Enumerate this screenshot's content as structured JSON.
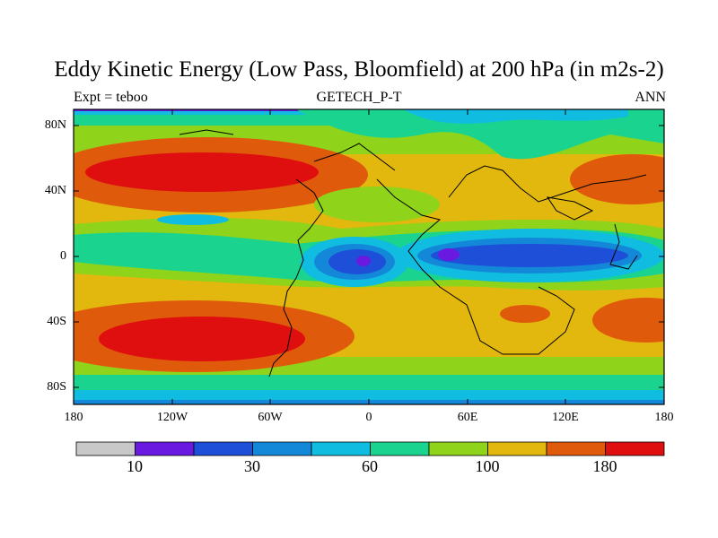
{
  "title": "Eddy Kinetic Energy (Low Pass, Bloomfield) at 200 hPa (in m2s-2)",
  "subtitle_left": "Expt = teboo",
  "subtitle_center": "GETECH_P-T",
  "subtitle_right": "ANN",
  "lat_labels": [
    "80N",
    "40N",
    "0",
    "40S",
    "80S"
  ],
  "lon_labels": [
    "180",
    "120W",
    "60W",
    "0",
    "60E",
    "120E",
    "180"
  ],
  "colorbar": {
    "colors": [
      "#c8c8c8",
      "#6a1ae0",
      "#1e4fd8",
      "#1488d8",
      "#10bde0",
      "#1ad38f",
      "#8fd41a",
      "#e2b80e",
      "#e05a0c",
      "#e00f0f"
    ],
    "labels": [
      "10",
      "30",
      "60",
      "100",
      "180"
    ]
  },
  "map": {
    "projection": "lat-lon",
    "lon_range": [
      -180,
      180
    ],
    "lat_range": [
      -90,
      90
    ],
    "field": "eddy kinetic energy"
  }
}
